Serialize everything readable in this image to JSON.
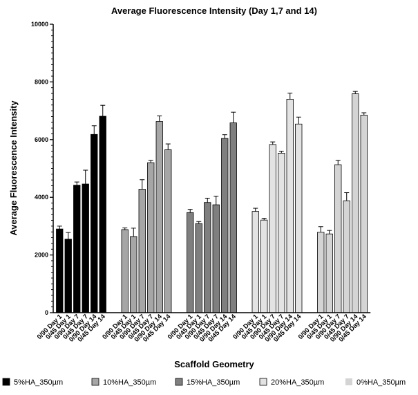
{
  "chart_data": {
    "type": "bar",
    "title": "Average Fluorescence Intensity (Day 1,7 and 14)",
    "xlabel": "Scaffold Geometry",
    "ylabel": "Average Fluorescence Intensity",
    "ylim": [
      0,
      10000
    ],
    "yticks": [
      0,
      2000,
      4000,
      6000,
      8000,
      10000
    ],
    "yminor_step": 200,
    "legend_position": "bottom",
    "grid": false,
    "categories": [
      "0/90 Day 1",
      "0/45 Day 1",
      "0/90 Day 7",
      "0/45 Day 7",
      "0/90 Day 14",
      "0/45 Day 14"
    ],
    "series": [
      {
        "name": "5%HA_350µm",
        "color": "#000000",
        "values": [
          2900,
          2550,
          4420,
          4460,
          6180,
          6810
        ],
        "errors": [
          100,
          230,
          110,
          480,
          300,
          380
        ]
      },
      {
        "name": "10%HA_350µm",
        "color": "#a6a6a6",
        "values": [
          2880,
          2640,
          4280,
          5200,
          6630,
          5650
        ],
        "errors": [
          60,
          290,
          330,
          80,
          190,
          200
        ]
      },
      {
        "name": "15%HA_350µm",
        "color": "#7f7f7f",
        "values": [
          3470,
          3090,
          3820,
          3740,
          6040,
          6580
        ],
        "errors": [
          110,
          70,
          150,
          300,
          130,
          370
        ]
      },
      {
        "name": "20%HA_350µm",
        "color": "#e3e3e3",
        "values": [
          3510,
          3210,
          5830,
          5530,
          7400,
          6540
        ],
        "errors": [
          110,
          60,
          90,
          70,
          210,
          240
        ]
      },
      {
        "name": "0%HA_350µm",
        "color": "#d4d4d4",
        "values": [
          2790,
          2730,
          5130,
          3880,
          7590,
          6850
        ],
        "errors": [
          190,
          120,
          150,
          280,
          80,
          80
        ]
      }
    ]
  }
}
